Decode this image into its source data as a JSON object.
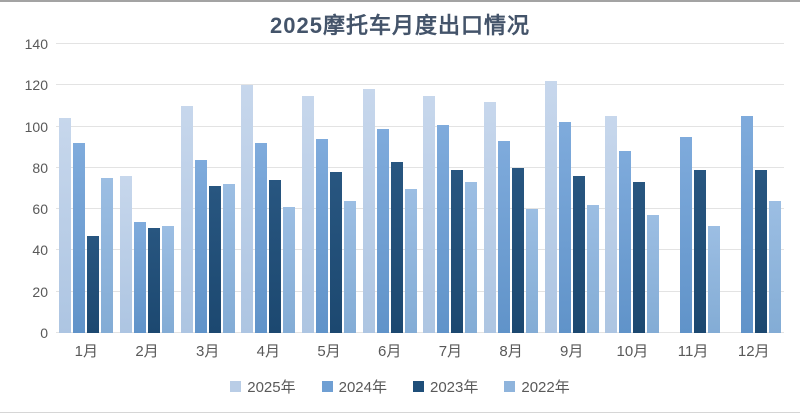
{
  "page": {
    "title": "2025摩托车月度出口情况"
  },
  "chart_data": {
    "type": "bar",
    "title": "2025摩托车月度出口情况",
    "categories": [
      "1月",
      "2月",
      "3月",
      "4月",
      "5月",
      "6月",
      "7月",
      "8月",
      "9月",
      "10月",
      "11月",
      "12月"
    ],
    "series": [
      {
        "name": "2025年",
        "color": "#b9cde6",
        "color_top": "#c7d7ec",
        "color_bottom": "#adc5e2",
        "values": [
          104,
          76,
          110,
          120,
          115,
          118,
          115,
          112,
          122,
          105,
          null,
          null
        ]
      },
      {
        "name": "2024年",
        "color": "#6f9fd3",
        "color_top": "#7fabdc",
        "color_bottom": "#6093c9",
        "values": [
          92,
          54,
          84,
          92,
          94,
          99,
          101,
          93,
          102,
          88,
          95,
          105
        ]
      },
      {
        "name": "2023年",
        "color": "#1f4e79",
        "color_top": "#285680",
        "color_bottom": "#1c4870",
        "values": [
          47,
          51,
          71,
          74,
          78,
          83,
          79,
          80,
          76,
          73,
          79,
          79
        ]
      },
      {
        "name": "2022年",
        "color": "#8fb4dc",
        "color_top": "#9cbee3",
        "color_bottom": "#83acd5",
        "values": [
          75,
          52,
          72,
          61,
          64,
          70,
          73,
          60,
          62,
          57,
          52,
          64
        ]
      }
    ],
    "ylim": [
      0,
      140
    ],
    "yticks": [
      0,
      20,
      40,
      60,
      80,
      100,
      120,
      140
    ],
    "grid": true,
    "legend_position": "bottom",
    "colors": {
      "title": "#44546a",
      "axis_text": "#595959",
      "gridline": "#e3e3e3"
    }
  }
}
